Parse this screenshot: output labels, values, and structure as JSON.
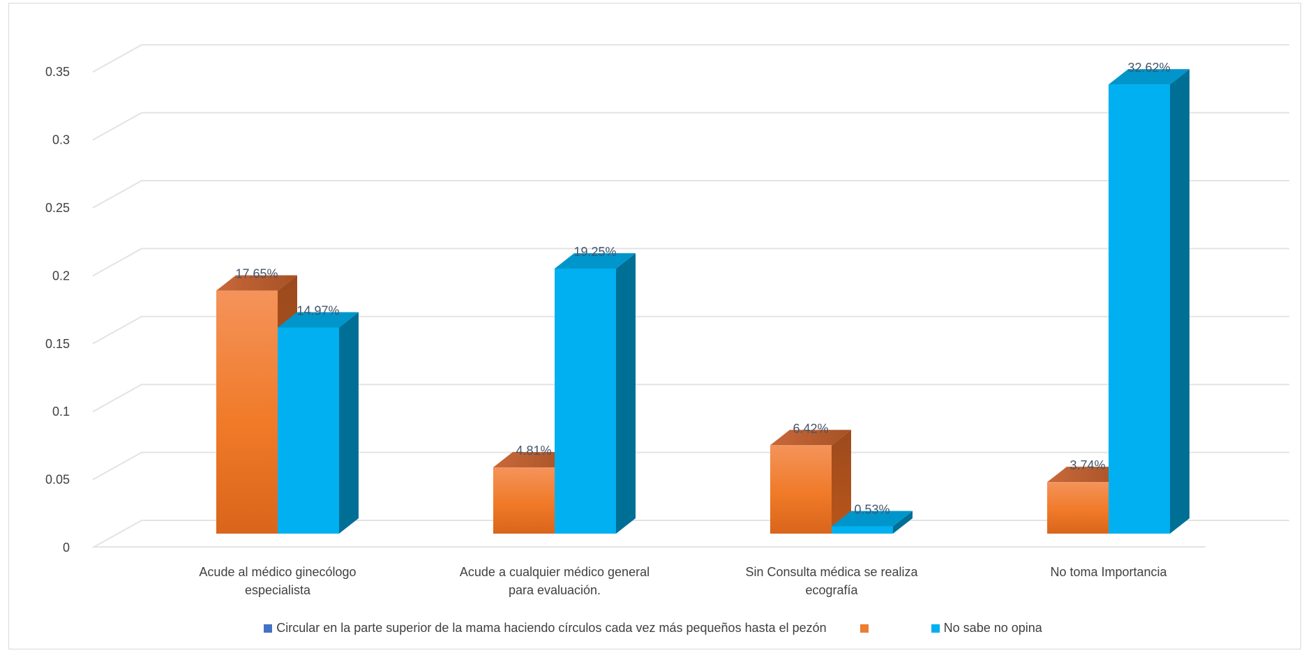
{
  "chart_data": {
    "type": "bar",
    "categories": [
      [
        "Acude al médico ginecólogo",
        "especialista"
      ],
      [
        "Acude a cualquier médico general",
        "para evaluación."
      ],
      [
        "Sin Consulta médica se realiza",
        "ecografía"
      ],
      [
        "No toma Importancia"
      ]
    ],
    "series": [
      {
        "name": "",
        "values": [
          0.1765,
          0.0481,
          0.0642,
          0.0374
        ],
        "labels": [
          "17.65%",
          "4.81%",
          "6.42%",
          "3.74%"
        ],
        "color": "#ed7d31"
      },
      {
        "name": "No sabe no opina",
        "values": [
          0.1497,
          0.1925,
          0.0053,
          0.3262
        ],
        "labels": [
          "14.97%",
          "19.25%",
          "0.53%",
          "32.62%"
        ],
        "color": "#00b0f0"
      }
    ],
    "yticks": [
      "0",
      "0.05",
      "0.1",
      "0.15",
      "0.2",
      "0.25",
      "0.3",
      "0.35"
    ],
    "ylim": [
      0,
      0.35
    ],
    "grid": true,
    "legend_position": "bottom"
  },
  "legend": [
    {
      "label": "Circular en la parte superior de la mama haciendo círculos cada vez más pequeños hasta el pezón",
      "color": "#4472c4"
    },
    {
      "label": "",
      "color": "#ed7d31"
    },
    {
      "label": "No sabe no opina",
      "color": "#00b0f0"
    }
  ]
}
